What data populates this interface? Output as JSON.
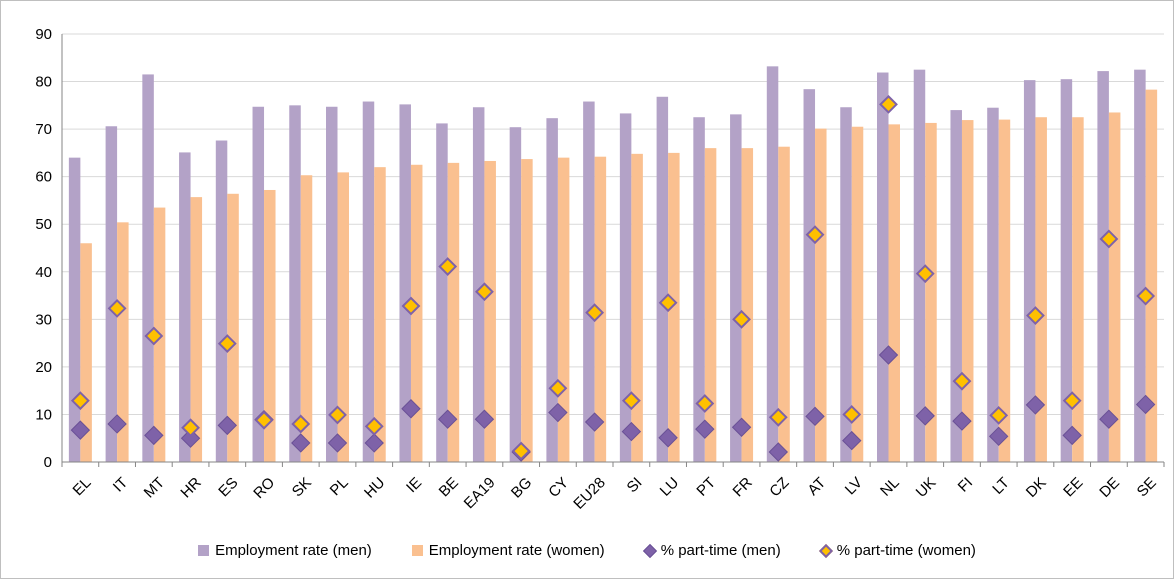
{
  "chart_data": {
    "type": "bar",
    "categories": [
      "EL",
      "IT",
      "MT",
      "HR",
      "ES",
      "RO",
      "SK",
      "PL",
      "HU",
      "IE",
      "BE",
      "EA19",
      "BG",
      "CY",
      "EU28",
      "SI",
      "LU",
      "PT",
      "FR",
      "CZ",
      "AT",
      "LV",
      "NL",
      "UK",
      "FI",
      "LT",
      "DK",
      "EE",
      "DE",
      "SE"
    ],
    "series": [
      {
        "name": "Employment rate (men)",
        "kind": "bar",
        "color": "#b3a2c7",
        "values": [
          64.0,
          70.6,
          81.5,
          65.1,
          67.6,
          74.7,
          75.0,
          74.7,
          75.8,
          75.2,
          71.2,
          74.6,
          70.4,
          72.3,
          75.8,
          73.3,
          76.8,
          72.5,
          73.1,
          83.2,
          78.4,
          74.6,
          81.9,
          82.5,
          74.0,
          74.5,
          80.3,
          80.5,
          82.2,
          82.5
        ],
        "legend_label": "Employment rate (men)"
      },
      {
        "name": "Employment rate (women)",
        "kind": "bar",
        "color": "#fac090",
        "values": [
          46.0,
          50.4,
          53.5,
          55.7,
          56.4,
          57.2,
          60.3,
          60.9,
          62.0,
          62.5,
          62.9,
          63.3,
          63.7,
          64.0,
          64.2,
          64.8,
          65.0,
          66.0,
          66.0,
          66.3,
          70.1,
          70.5,
          71.0,
          71.3,
          71.9,
          72.0,
          72.5,
          72.5,
          73.5,
          78.3
        ],
        "legend_label": "Employment rate (women)"
      },
      {
        "name": "% part-time (men)",
        "kind": "diamond",
        "color": "#7e62a8",
        "stroke": "#6a5196",
        "values": [
          6.7,
          8.0,
          5.6,
          5.0,
          7.7,
          8.9,
          4.0,
          4.0,
          4.0,
          11.2,
          9.0,
          9.0,
          2.1,
          10.4,
          8.4,
          6.4,
          5.1,
          6.9,
          7.3,
          2.1,
          9.6,
          4.5,
          22.5,
          9.7,
          8.6,
          5.4,
          12.0,
          5.6,
          9.0,
          12.1
        ],
        "legend_label": "% part-time (men)"
      },
      {
        "name": "% part-time (women)",
        "kind": "diamond",
        "color": "#ffc000",
        "stroke": "#7e62a8",
        "values": [
          12.9,
          32.3,
          26.5,
          7.2,
          24.9,
          8.8,
          8.0,
          9.9,
          7.5,
          32.8,
          41.1,
          35.8,
          2.3,
          15.5,
          31.4,
          12.9,
          33.5,
          12.3,
          30.0,
          9.4,
          47.8,
          10.0,
          75.2,
          39.6,
          17.0,
          9.8,
          30.8,
          12.9,
          46.9,
          34.9
        ],
        "legend_label": "% part-time (women)"
      }
    ],
    "ylim": [
      0,
      90
    ],
    "yticks": [
      "0",
      "10",
      "20",
      "30",
      "40",
      "50",
      "60",
      "70",
      "80",
      "90"
    ],
    "grid": true,
    "legend_position": "bottom",
    "title": "",
    "xlabel": "",
    "ylabel": ""
  }
}
